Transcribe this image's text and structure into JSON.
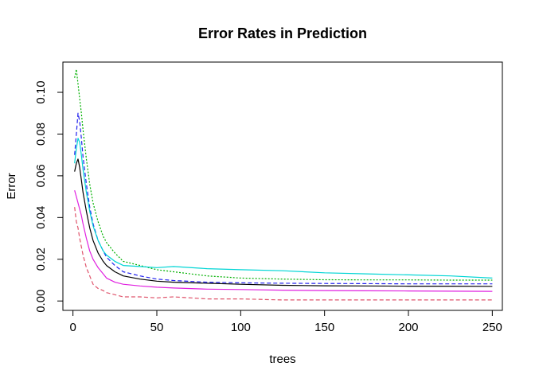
{
  "chart_data": {
    "type": "line",
    "title": "Error Rates in Prediction",
    "xlabel": "trees",
    "ylabel": "Error",
    "xlim": [
      -6,
      256
    ],
    "ylim": [
      -0.0045,
      0.1145
    ],
    "x_ticks": [
      0,
      50,
      100,
      150,
      200,
      250
    ],
    "y_ticks": [
      0.0,
      0.02,
      0.04,
      0.06,
      0.08,
      0.1
    ],
    "x_tick_labels": [
      "0",
      "50",
      "100",
      "150",
      "200",
      "250"
    ],
    "y_tick_labels": [
      "0.00",
      "0.02",
      "0.04",
      "0.06",
      "0.08",
      "0.10"
    ],
    "grid": false,
    "legend": "none",
    "x": [
      1,
      2,
      3,
      4,
      5,
      6,
      8,
      10,
      12,
      15,
      18,
      20,
      25,
      30,
      40,
      50,
      60,
      80,
      100,
      125,
      150,
      175,
      200,
      225,
      250
    ],
    "series": [
      {
        "color": "#000000",
        "dash": "solid",
        "values": [
          0.062,
          0.066,
          0.068,
          0.064,
          0.058,
          0.052,
          0.043,
          0.035,
          0.029,
          0.023,
          0.019,
          0.017,
          0.014,
          0.012,
          0.0105,
          0.0095,
          0.009,
          0.0085,
          0.008,
          0.0075,
          0.0073,
          0.0072,
          0.0071,
          0.0071,
          0.007
        ]
      },
      {
        "color": "#DF536B",
        "dash": "dashed",
        "values": [
          0.045,
          0.038,
          0.035,
          0.03,
          0.026,
          0.022,
          0.016,
          0.012,
          0.008,
          0.006,
          0.005,
          0.004,
          0.003,
          0.002,
          0.002,
          0.0015,
          0.002,
          0.001,
          0.001,
          0.0005,
          0.0005,
          0.0005,
          0.0005,
          0.0005,
          0.0005
        ]
      },
      {
        "color": "#00B000",
        "dash": "dotted",
        "values": [
          0.107,
          0.111,
          0.104,
          0.097,
          0.09,
          0.082,
          0.068,
          0.056,
          0.047,
          0.038,
          0.031,
          0.028,
          0.023,
          0.019,
          0.017,
          0.015,
          0.014,
          0.012,
          0.011,
          0.0105,
          0.0102,
          0.0101,
          0.0101,
          0.01,
          0.01
        ]
      },
      {
        "color": "#2020EE",
        "dash": "dashed",
        "values": [
          0.07,
          0.08,
          0.09,
          0.086,
          0.078,
          0.069,
          0.056,
          0.045,
          0.037,
          0.029,
          0.024,
          0.021,
          0.017,
          0.014,
          0.012,
          0.0105,
          0.0098,
          0.009,
          0.0087,
          0.0085,
          0.0084,
          0.0083,
          0.0082,
          0.0082,
          0.0082
        ]
      },
      {
        "color": "#00D5D5",
        "dash": "solid",
        "values": [
          0.066,
          0.073,
          0.078,
          0.076,
          0.07,
          0.063,
          0.052,
          0.043,
          0.036,
          0.029,
          0.024,
          0.022,
          0.019,
          0.017,
          0.0165,
          0.016,
          0.0165,
          0.0155,
          0.015,
          0.0145,
          0.0135,
          0.013,
          0.0125,
          0.012,
          0.011
        ]
      },
      {
        "color": "#E020E0",
        "dash": "solid",
        "values": [
          0.053,
          0.05,
          0.047,
          0.044,
          0.041,
          0.037,
          0.03,
          0.024,
          0.02,
          0.016,
          0.013,
          0.011,
          0.009,
          0.008,
          0.0072,
          0.0066,
          0.0062,
          0.0057,
          0.0055,
          0.0052,
          0.005,
          0.0049,
          0.0048,
          0.0047,
          0.0046
        ]
      }
    ]
  }
}
